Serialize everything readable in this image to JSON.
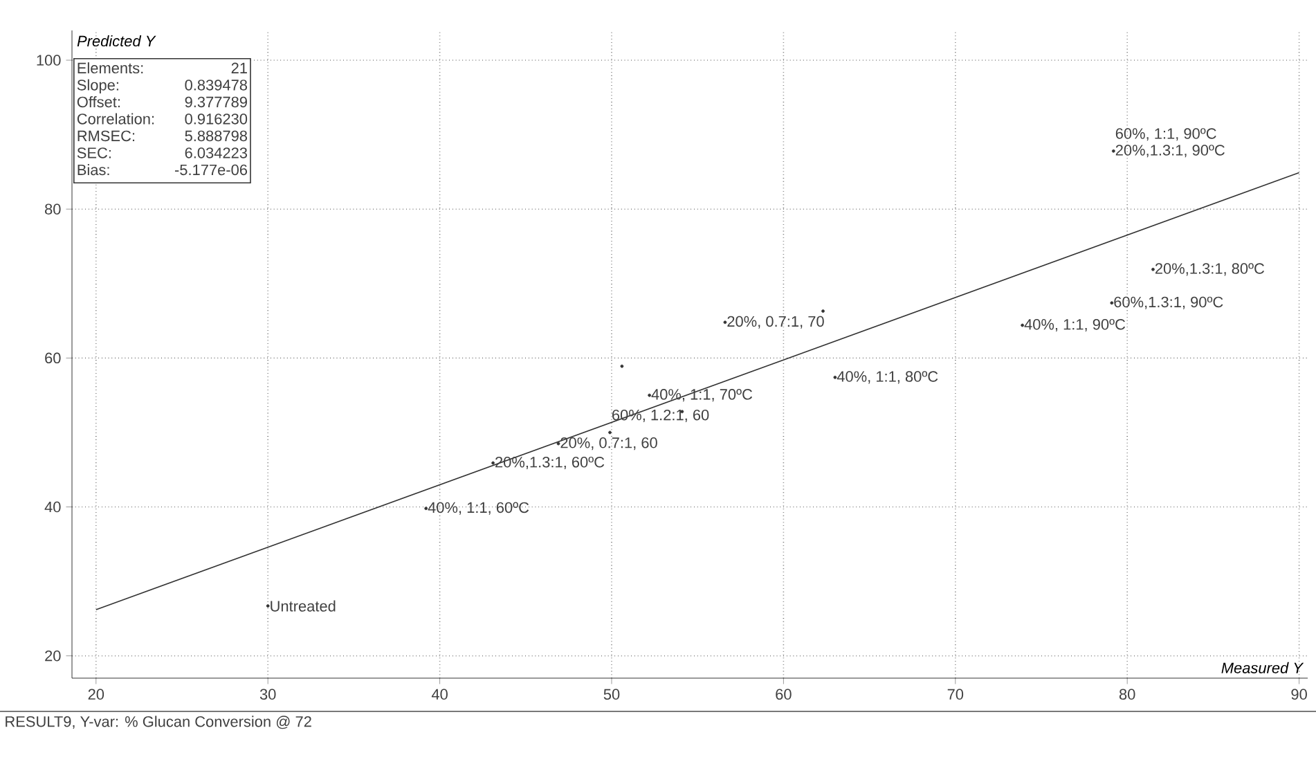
{
  "chart_data": {
    "type": "scatter",
    "xlabel": "Measured Y",
    "ylabel": "Predicted Y",
    "xlim": [
      18.6,
      90.5
    ],
    "ylim": [
      17,
      104
    ],
    "xticks": [
      20,
      30,
      40,
      50,
      60,
      70,
      80,
      90
    ],
    "yticks": [
      20,
      40,
      60,
      80,
      100
    ],
    "grid": true,
    "series": [
      {
        "color": "#333333",
        "marker": "circle",
        "x": [
          30,
          39.2,
          43.1,
          46.9,
          49.9,
          54.1,
          52.2,
          50.6,
          63.0,
          56.6,
          62.3,
          73.9,
          79.1,
          81.5,
          79.2
        ],
        "values": [
          26.7,
          39.8,
          45.9,
          48.5,
          50.0,
          52.8,
          55.0,
          58.9,
          57.4,
          64.8,
          66.3,
          64.4,
          67.4,
          71.9,
          87.8
        ]
      },
      {
        "type": "line",
        "color": "#333333",
        "x": [
          20,
          90
        ],
        "values": [
          26.2,
          84.9
        ]
      }
    ],
    "annotations": [
      "Elements:",
      "21",
      "Slope:",
      "0.839478",
      "Offset:",
      "9.377789",
      "Correlation:",
      "0.916230",
      "RMSEC:",
      "5.888798",
      "SEC:",
      "6.034223",
      "Bias:",
      "-5.177e-06",
      {
        "text": "Untreated",
        "x": 30,
        "y": 26.7
      },
      {
        "text": "40%, 1:1, 60ºC",
        "x": 39.2,
        "y": 39.8
      },
      {
        "text": "20%,1.3:1, 60ºC",
        "x": 43.1,
        "y": 45.9
      },
      {
        "text": "20%, 0.7:1, 60",
        "x": 46.9,
        "y": 48.5
      },
      {
        "text": "60%, 1.2:1, 60",
        "x": 49.9,
        "y": 50.0
      },
      {
        "text": "40%, 1:1, 70ºC",
        "x": 52.2,
        "y": 55.0
      },
      {
        "text": "40%, 1:1, 80ºC",
        "x": 63.0,
        "y": 57.4
      },
      {
        "text": "20%, 0.7:1, 70",
        "x": 56.6,
        "y": 64.8
      },
      {
        "text": "40%, 1:1, 90ºC",
        "x": 73.9,
        "y": 64.4
      },
      {
        "text": "60%,1.3:1, 90ºC",
        "x": 79.1,
        "y": 67.4
      },
      {
        "text": "20%,1.3:1, 80ºC",
        "x": 81.5,
        "y": 71.9
      },
      {
        "text": "20%,1.3:1, 90ºC",
        "x": 79.2,
        "y": 87.8
      },
      {
        "text": "60%, 1:1, 90ºC",
        "x": 79.2,
        "y": 87.8
      },
      "RESULT9, Y-var: % Glucan Conversion @ 72"
    ]
  }
}
